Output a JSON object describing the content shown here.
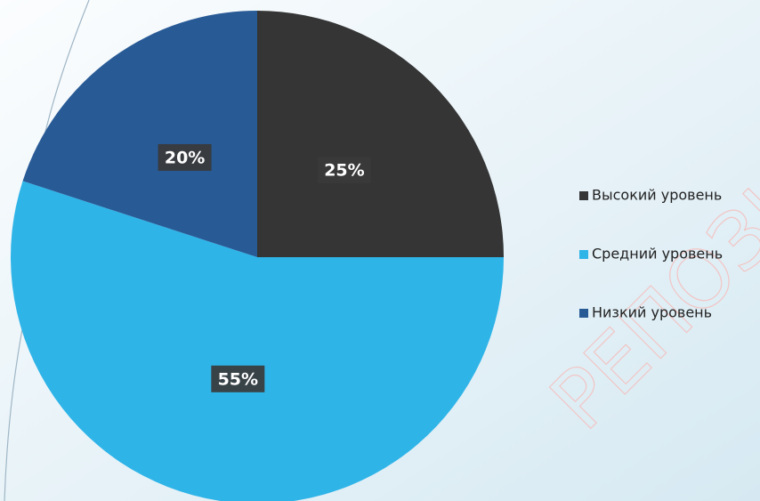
{
  "chart_data": {
    "type": "pie",
    "categories": [
      "Высокий уровень",
      "Средний уровень",
      "Низкий уровень"
    ],
    "values": [
      25,
      55,
      20
    ],
    "value_labels": [
      "25%",
      "55%",
      "20%"
    ],
    "colors": [
      "#353535",
      "#2fb4e8",
      "#285a96"
    ],
    "legend": "right",
    "watermark": "РЕПОЗИТО"
  }
}
